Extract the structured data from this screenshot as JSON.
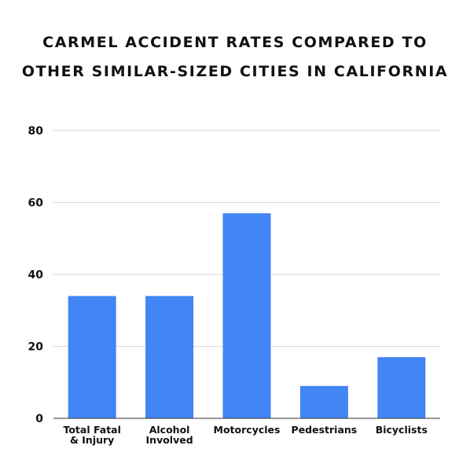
{
  "chart_data": {
    "type": "bar",
    "title_lines": [
      "CARMEL ACCIDENT RATES COMPARED TO",
      "OTHER SIMILAR-SIZED CITIES IN CALIFORNIA"
    ],
    "categories": [
      [
        "Total Fatal",
        "& Injury"
      ],
      [
        "Alcohol",
        "Involved"
      ],
      [
        "Motorcycles"
      ],
      [
        "Pedestrians"
      ],
      [
        "Bicyclists"
      ]
    ],
    "values": [
      34,
      34,
      57,
      9,
      17
    ],
    "ylim": [
      0,
      80
    ],
    "yticks": [
      0,
      20,
      40,
      60,
      80
    ],
    "xlabel": "",
    "ylabel": "",
    "grid": true,
    "legend": "none",
    "bar_color": "#4285f4"
  }
}
